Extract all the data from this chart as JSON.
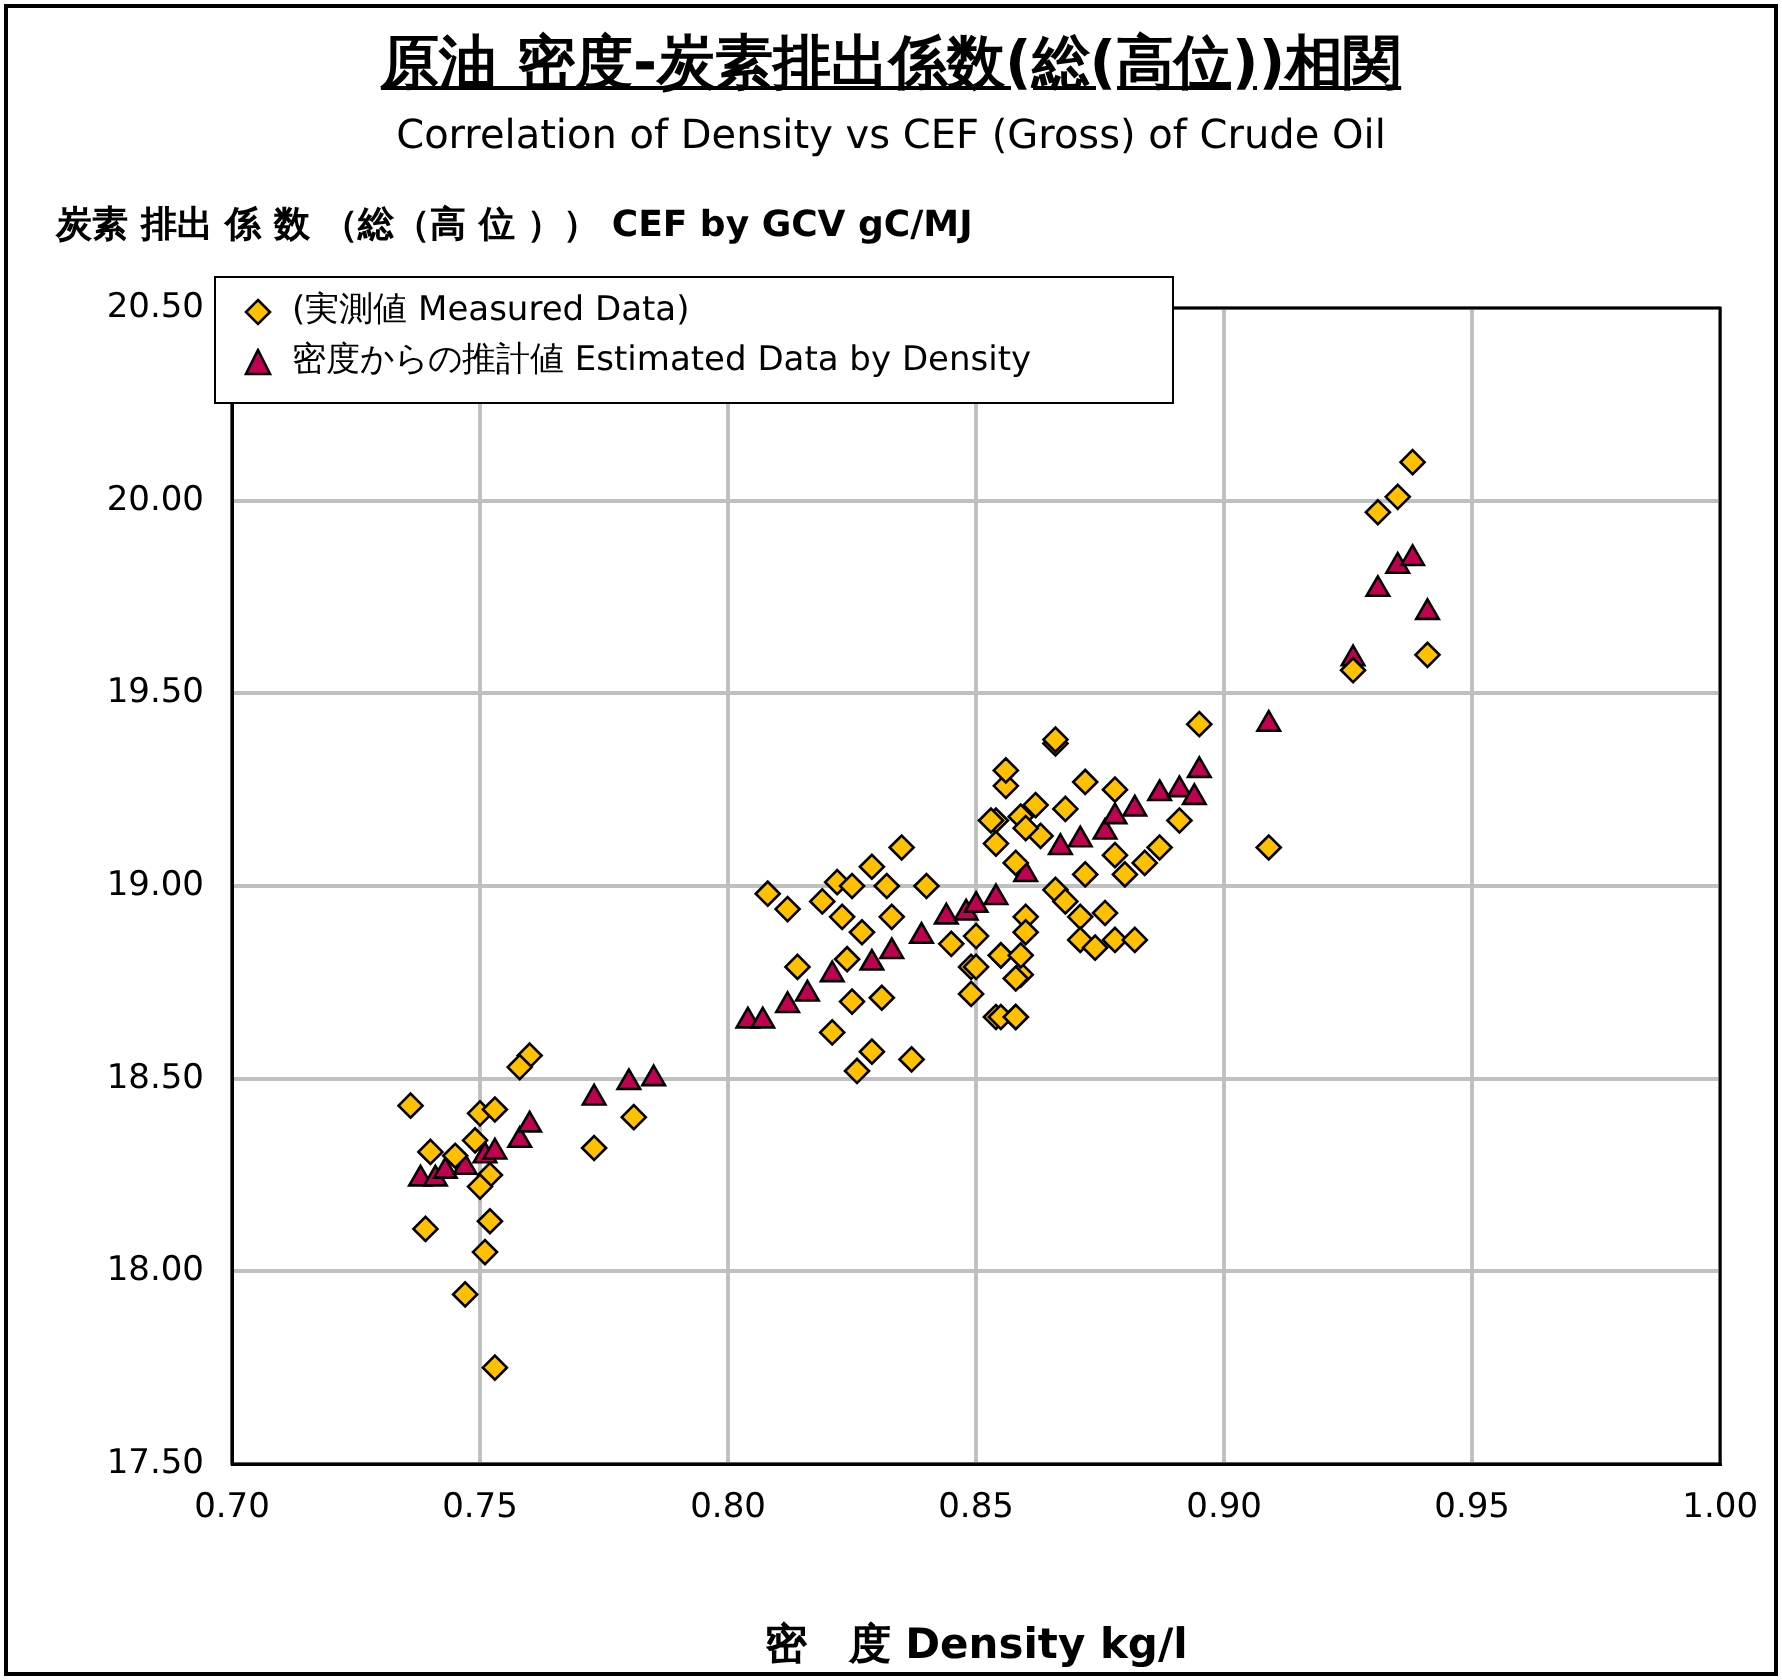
{
  "chart_data": {
    "type": "scatter",
    "title": "原油 密度-炭素排出係数(総(高位))相関",
    "subtitle": "Correlation of Density vs CEF (Gross) of Crude Oil",
    "ylabel": "炭素 排出 係 数 （総（高 位 ）） CEF by GCV gC/MJ",
    "xlabel": "密　度 Density kg/l",
    "xlim": [
      0.7,
      1.0
    ],
    "xticks": [
      {
        "value": 0.7,
        "label": "0.70"
      },
      {
        "value": 0.75,
        "label": "0.75"
      },
      {
        "value": 0.8,
        "label": "0.80"
      },
      {
        "value": 0.85,
        "label": "0.85"
      },
      {
        "value": 0.9,
        "label": "0.90"
      },
      {
        "value": 0.95,
        "label": "0.95"
      },
      {
        "value": 1.0,
        "label": "1.00"
      }
    ],
    "ylim": [
      17.5,
      20.5
    ],
    "yticks": [
      {
        "value": 17.5,
        "label": "17.50"
      },
      {
        "value": 18,
        "label": "18.00"
      },
      {
        "value": 18.5,
        "label": "18.50"
      },
      {
        "value": 19,
        "label": "19.00"
      },
      {
        "value": 19.5,
        "label": "19.50"
      },
      {
        "value": 20,
        "label": "20.00"
      },
      {
        "value": 20.5,
        "label": "20.50"
      }
    ],
    "grid": true,
    "legend": "top left",
    "series": [
      {
        "name": "(実測値 Measured Data)",
        "color": "#ffc000",
        "marker": "diamond",
        "x": [
          0.76,
          0.758,
          0.736,
          0.75,
          0.753,
          0.749,
          0.74,
          0.745,
          0.752,
          0.75,
          0.739,
          0.752,
          0.751,
          0.747,
          0.753,
          0.773,
          0.781,
          0.808,
          0.812,
          0.819,
          0.822,
          0.825,
          0.829,
          0.832,
          0.835,
          0.84,
          0.823,
          0.827,
          0.833,
          0.814,
          0.824,
          0.825,
          0.831,
          0.821,
          0.829,
          0.826,
          0.837,
          0.845,
          0.85,
          0.849,
          0.849,
          0.855,
          0.859,
          0.854,
          0.858,
          0.86,
          0.856,
          0.856,
          0.866,
          0.854,
          0.859,
          0.868,
          0.863,
          0.854,
          0.858,
          0.866,
          0.868,
          0.866,
          0.895,
          0.872,
          0.878,
          0.862,
          0.853,
          0.86,
          0.891,
          0.887,
          0.878,
          0.88,
          0.884,
          0.872,
          0.871,
          0.876,
          0.871,
          0.874,
          0.878,
          0.882,
          0.86,
          0.855,
          0.859,
          0.85,
          0.858,
          0.855,
          0.858,
          0.909,
          0.938,
          0.935,
          0.931,
          0.941,
          0.926
        ],
        "values": [
          18.56,
          18.53,
          18.43,
          18.41,
          18.42,
          18.34,
          18.31,
          18.3,
          18.25,
          18.22,
          18.11,
          18.13,
          18.05,
          17.94,
          17.75,
          18.32,
          18.4,
          18.98,
          18.94,
          18.96,
          19.01,
          19.0,
          19.05,
          19.0,
          19.1,
          19.0,
          18.92,
          18.88,
          18.92,
          18.79,
          18.81,
          18.7,
          18.71,
          18.62,
          18.57,
          18.52,
          18.55,
          18.85,
          18.87,
          18.79,
          18.72,
          18.82,
          18.77,
          18.66,
          18.66,
          18.92,
          19.26,
          19.3,
          19.37,
          19.17,
          19.18,
          19.2,
          19.13,
          19.11,
          19.06,
          18.99,
          18.96,
          19.38,
          19.42,
          19.27,
          19.25,
          19.21,
          19.17,
          19.15,
          19.17,
          19.1,
          19.08,
          19.03,
          19.06,
          19.03,
          18.92,
          18.93,
          18.86,
          18.84,
          18.86,
          18.86,
          18.88,
          18.82,
          18.82,
          18.79,
          18.76,
          18.66,
          18.66,
          19.1,
          20.1,
          20.01,
          19.97,
          19.6,
          19.56
        ]
      },
      {
        "name": "密度からの推計値 Estimated Data by Density",
        "color": "#c00050",
        "marker": "triangle",
        "x": [
          0.738,
          0.741,
          0.743,
          0.747,
          0.751,
          0.753,
          0.758,
          0.76,
          0.773,
          0.78,
          0.785,
          0.804,
          0.807,
          0.812,
          0.816,
          0.821,
          0.829,
          0.833,
          0.839,
          0.844,
          0.848,
          0.85,
          0.854,
          0.86,
          0.867,
          0.871,
          0.876,
          0.878,
          0.882,
          0.887,
          0.891,
          0.894,
          0.895,
          0.909,
          0.926,
          0.931,
          0.935,
          0.938,
          0.941
        ],
        "values": [
          18.24,
          18.24,
          18.26,
          18.27,
          18.3,
          18.31,
          18.34,
          18.38,
          18.45,
          18.49,
          18.5,
          18.65,
          18.65,
          18.69,
          18.72,
          18.77,
          18.8,
          18.83,
          18.87,
          18.92,
          18.93,
          18.95,
          18.97,
          19.03,
          19.1,
          19.12,
          19.14,
          19.18,
          19.2,
          19.24,
          19.25,
          19.23,
          19.3,
          19.42,
          19.59,
          19.77,
          19.83,
          19.85,
          19.71
        ]
      }
    ]
  }
}
